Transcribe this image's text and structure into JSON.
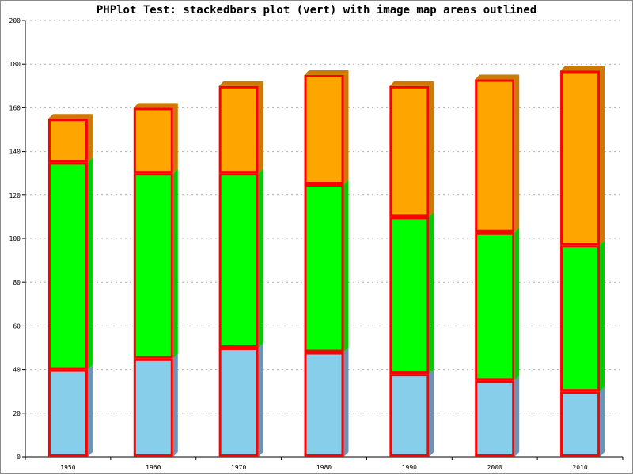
{
  "title": "PHPlot Test: stackedbars plot (vert) with image map areas outlined",
  "chart_data": {
    "type": "bar",
    "stacked": true,
    "title": "PHPlot Test: stackedbars plot (vert) with image map areas outlined",
    "xlabel": "",
    "ylabel": "",
    "categories": [
      "1950",
      "1960",
      "1970",
      "1980",
      "1990",
      "2000",
      "2010"
    ],
    "series": [
      {
        "color": "#87ceeb",
        "side_color": "#6a93b8",
        "values": [
          40,
          45,
          50,
          48,
          38,
          35,
          30
        ]
      },
      {
        "color": "#00ff00",
        "side_color": "#00cc00",
        "values": [
          95,
          85,
          80,
          77,
          72,
          68,
          67
        ]
      },
      {
        "color": "#ffa500",
        "side_color": "#cc7a00",
        "values": [
          20,
          30,
          40,
          50,
          60,
          70,
          80
        ]
      }
    ],
    "ylim": [
      0,
      200
    ],
    "yticks": [
      0,
      20,
      40,
      60,
      80,
      100,
      120,
      140,
      160,
      180,
      200
    ],
    "grid": "horizontal dashed",
    "outline_color": "#ff0000",
    "shading": "3d"
  }
}
